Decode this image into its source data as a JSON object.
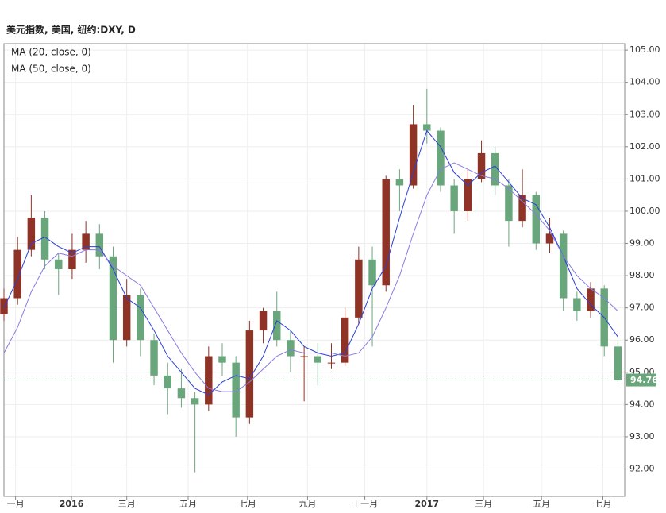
{
  "chart_data": {
    "type": "candlestick",
    "title": "美元指数, 美国, 纽约:DXY, D",
    "legend": [
      "MA (20, close, 0)",
      "MA (50, close, 0)"
    ],
    "up_color": "#8e3325",
    "down_color": "#6aa67c",
    "grid": true,
    "x": [
      0,
      2,
      4,
      6,
      8,
      10,
      12,
      14,
      16,
      18,
      20,
      22,
      24,
      26,
      28,
      30,
      32,
      34,
      36,
      38,
      40,
      42,
      44,
      46,
      48,
      50,
      52,
      54,
      56,
      58,
      60,
      62,
      64,
      66,
      68,
      70,
      72,
      74,
      76,
      78,
      80,
      82,
      84,
      86,
      88,
      90
    ],
    "open": [
      96.8,
      97.3,
      98.8,
      99.8,
      98.5,
      98.2,
      98.8,
      99.3,
      98.6,
      96.0,
      97.4,
      96.0,
      94.9,
      94.5,
      94.2,
      94.0,
      95.5,
      95.3,
      93.6,
      96.3,
      96.9,
      96.0,
      95.5,
      95.5,
      95.3,
      95.3,
      96.7,
      98.5,
      97.7,
      101.0,
      100.8,
      102.7,
      102.5,
      100.8,
      100.0,
      101.0,
      101.8,
      100.8,
      99.7,
      100.5,
      99.0,
      99.3,
      97.3,
      96.9,
      97.6,
      95.8
    ],
    "high": [
      97.6,
      99.2,
      100.5,
      100.0,
      98.7,
      99.3,
      99.7,
      99.6,
      98.9,
      97.9,
      97.6,
      96.2,
      95.3,
      95.1,
      94.4,
      95.8,
      95.9,
      95.5,
      96.6,
      97.0,
      97.5,
      96.3,
      95.8,
      95.9,
      95.9,
      97.0,
      98.9,
      98.9,
      101.1,
      101.3,
      103.3,
      103.8,
      102.6,
      101.0,
      101.3,
      102.2,
      102.0,
      101.0,
      101.3,
      100.6,
      99.8,
      99.4,
      97.5,
      97.8,
      97.7,
      96.0
    ],
    "low": [
      96.6,
      97.1,
      98.6,
      98.2,
      97.4,
      97.9,
      98.4,
      98.2,
      95.3,
      95.8,
      95.5,
      94.6,
      93.7,
      93.9,
      91.9,
      93.8,
      94.9,
      93.0,
      93.4,
      95.9,
      95.8,
      95.0,
      94.1,
      94.6,
      95.1,
      95.2,
      96.5,
      95.8,
      97.5,
      100.0,
      100.7,
      102.1,
      100.6,
      99.3,
      99.7,
      100.9,
      100.5,
      98.9,
      99.5,
      98.8,
      98.7,
      96.9,
      96.6,
      96.7,
      95.5,
      94.7
    ],
    "close": [
      97.3,
      98.8,
      99.8,
      98.5,
      98.2,
      98.8,
      99.3,
      98.6,
      96.0,
      97.4,
      96.0,
      94.9,
      94.5,
      94.2,
      94.0,
      95.5,
      95.3,
      93.6,
      96.3,
      96.9,
      96.0,
      95.5,
      95.5,
      95.3,
      95.3,
      96.7,
      98.5,
      97.7,
      101.0,
      100.8,
      102.7,
      102.5,
      100.8,
      100.0,
      101.0,
      101.8,
      100.8,
      99.7,
      100.5,
      99.0,
      99.3,
      97.3,
      96.9,
      97.6,
      95.8,
      94.76
    ],
    "series": [
      {
        "name": "MA 20",
        "color": "#2b3fd6",
        "values": [
          97.0,
          97.9,
          99.0,
          99.2,
          98.9,
          98.7,
          98.9,
          98.9,
          98.2,
          97.3,
          97.0,
          96.3,
          95.5,
          95.0,
          94.5,
          94.3,
          94.7,
          94.9,
          94.8,
          95.5,
          96.6,
          96.3,
          95.8,
          95.6,
          95.5,
          95.6,
          96.5,
          97.6,
          98.3,
          99.8,
          101.2,
          102.5,
          102.0,
          101.2,
          100.8,
          101.2,
          101.4,
          100.9,
          100.4,
          100.2,
          99.5,
          98.6,
          97.6,
          97.1,
          96.7,
          96.1
        ]
      },
      {
        "name": "MA 50",
        "color": "#8a7be0",
        "values": [
          95.6,
          96.4,
          97.5,
          98.3,
          98.7,
          98.6,
          98.8,
          98.8,
          98.3,
          98.0,
          97.7,
          97.0,
          96.3,
          95.6,
          95.0,
          94.5,
          94.4,
          94.4,
          94.7,
          95.1,
          95.5,
          95.7,
          95.6,
          95.6,
          95.6,
          95.5,
          95.6,
          96.1,
          97.0,
          98.0,
          99.3,
          100.5,
          101.3,
          101.5,
          101.3,
          101.1,
          101.0,
          100.7,
          100.3,
          99.9,
          99.4,
          98.6,
          98.0,
          97.6,
          97.3,
          96.9
        ]
      }
    ],
    "last_value": 94.76,
    "xlim": [
      0,
      91
    ],
    "xticks": [
      {
        "value": 1.7,
        "label": "一月"
      },
      {
        "value": 9.9,
        "label": "2016"
      },
      {
        "value": 18,
        "label": "三月"
      },
      {
        "value": 27,
        "label": "五月"
      },
      {
        "value": 35.7,
        "label": "七月"
      },
      {
        "value": 44.5,
        "label": "九月"
      },
      {
        "value": 52.9,
        "label": "十一月"
      },
      {
        "value": 62,
        "label": "2017"
      },
      {
        "value": 70.3,
        "label": "三月"
      },
      {
        "value": 78.8,
        "label": "五月"
      },
      {
        "value": 87.8,
        "label": "七月"
      }
    ],
    "ylim": [
      91.15,
      105.2
    ],
    "yticks": [
      {
        "value": 92,
        "label": "92.00"
      },
      {
        "value": 93,
        "label": "93.00"
      },
      {
        "value": 94,
        "label": "94.00"
      },
      {
        "value": 95,
        "label": "95.00"
      },
      {
        "value": 96,
        "label": "96.00"
      },
      {
        "value": 97,
        "label": "97.00"
      },
      {
        "value": 98,
        "label": "98.00"
      },
      {
        "value": 99,
        "label": "99.00"
      },
      {
        "value": 100,
        "label": "100.00"
      },
      {
        "value": 101,
        "label": "101.00"
      },
      {
        "value": 102,
        "label": "102.00"
      },
      {
        "value": 103,
        "label": "103.00"
      },
      {
        "value": 104,
        "label": "104.00"
      },
      {
        "value": 105,
        "label": "105.00"
      }
    ]
  }
}
